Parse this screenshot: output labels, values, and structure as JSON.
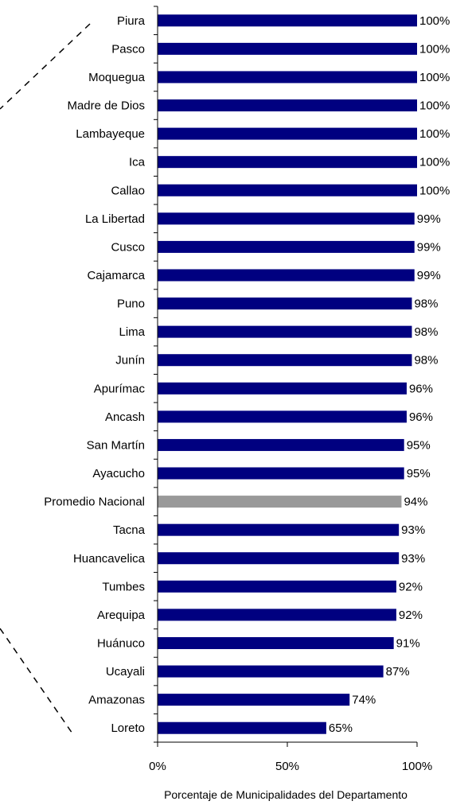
{
  "chart_data": {
    "type": "bar",
    "orientation": "horizontal",
    "categories": [
      "Piura",
      "Pasco",
      "Moquegua",
      "Madre de Dios",
      "Lambayeque",
      "Ica",
      "Callao",
      "La Libertad",
      "Cusco",
      "Cajamarca",
      "Puno",
      "Lima",
      "Junín",
      "Apurímac",
      "Ancash",
      "San Martín",
      "Ayacucho",
      "Promedio Nacional",
      "Tacna",
      "Huancavelica",
      "Tumbes",
      "Arequipa",
      "Huánuco",
      "Ucayali",
      "Amazonas",
      "Loreto"
    ],
    "values": [
      100,
      100,
      100,
      100,
      100,
      100,
      100,
      99,
      99,
      99,
      98,
      98,
      98,
      96,
      96,
      95,
      95,
      94,
      93,
      93,
      92,
      92,
      91,
      87,
      74,
      65
    ],
    "value_labels": [
      "100%",
      "100%",
      "100%",
      "100%",
      "100%",
      "100%",
      "100%",
      "99%",
      "99%",
      "99%",
      "98%",
      "98%",
      "98%",
      "96%",
      "96%",
      "95%",
      "95%",
      "94%",
      "93%",
      "93%",
      "92%",
      "92%",
      "91%",
      "87%",
      "74%",
      "65%"
    ],
    "highlight_category": "Promedio Nacional",
    "xlim": [
      0,
      100
    ],
    "x_ticks": [
      "0%",
      "50%",
      "100%"
    ],
    "xlabel": "Porcentaje de Municipalidades del Departamento",
    "ylabel": "",
    "title": "",
    "grid": false,
    "legend": "none",
    "colors": {
      "bar": "#000080",
      "highlight": "#999999",
      "axis": "#000000",
      "text": "#000000"
    }
  }
}
